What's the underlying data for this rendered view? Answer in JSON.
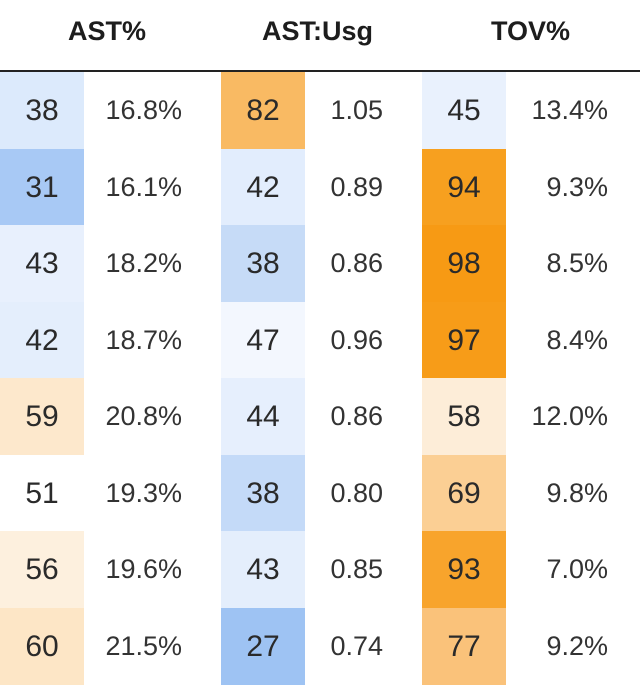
{
  "headers": {
    "ast_pct": "AST%",
    "ast_usg": "AST:Usg",
    "tov_pct": "TOV%"
  },
  "rows": [
    {
      "ast_pctile": "38",
      "ast_val": "16.8%",
      "usg_pctile": "82",
      "usg_val": "1.05",
      "tov_pctile": "45",
      "tov_val": "13.4%"
    },
    {
      "ast_pctile": "31",
      "ast_val": "16.1%",
      "usg_pctile": "42",
      "usg_val": "0.89",
      "tov_pctile": "94",
      "tov_val": "9.3%"
    },
    {
      "ast_pctile": "43",
      "ast_val": "18.2%",
      "usg_pctile": "38",
      "usg_val": "0.86",
      "tov_pctile": "98",
      "tov_val": "8.5%"
    },
    {
      "ast_pctile": "42",
      "ast_val": "18.7%",
      "usg_pctile": "47",
      "usg_val": "0.96",
      "tov_pctile": "97",
      "tov_val": "8.4%"
    },
    {
      "ast_pctile": "59",
      "ast_val": "20.8%",
      "usg_pctile": "44",
      "usg_val": "0.86",
      "tov_pctile": "58",
      "tov_val": "12.0%"
    },
    {
      "ast_pctile": "51",
      "ast_val": "19.3%",
      "usg_pctile": "38",
      "usg_val": "0.80",
      "tov_pctile": "69",
      "tov_val": "9.8%"
    },
    {
      "ast_pctile": "56",
      "ast_val": "19.6%",
      "usg_pctile": "43",
      "usg_val": "0.85",
      "tov_pctile": "93",
      "tov_val": "7.0%"
    },
    {
      "ast_pctile": "60",
      "ast_val": "21.5%",
      "usg_pctile": "27",
      "usg_val": "0.74",
      "tov_pctile": "77",
      "tov_val": "9.2%"
    }
  ],
  "colors": {
    "ast": [
      "#dceafc",
      "#a8c9f5",
      "#e8f0fd",
      "#e4eefc",
      "#fde8cc",
      "#ffffff",
      "#fdf0de",
      "#fde6c6"
    ],
    "usg": [
      "#f9ba63",
      "#e2edfd",
      "#c6dbf7",
      "#f3f7fe",
      "#e6effd",
      "#c4daf8",
      "#e4eefc",
      "#9ec3f3"
    ],
    "tov": [
      "#e9f1fd",
      "#f7a01f",
      "#f79a14",
      "#f79c18",
      "#fdedd8",
      "#fbcf94",
      "#f8a42c",
      "#fac27a"
    ]
  }
}
